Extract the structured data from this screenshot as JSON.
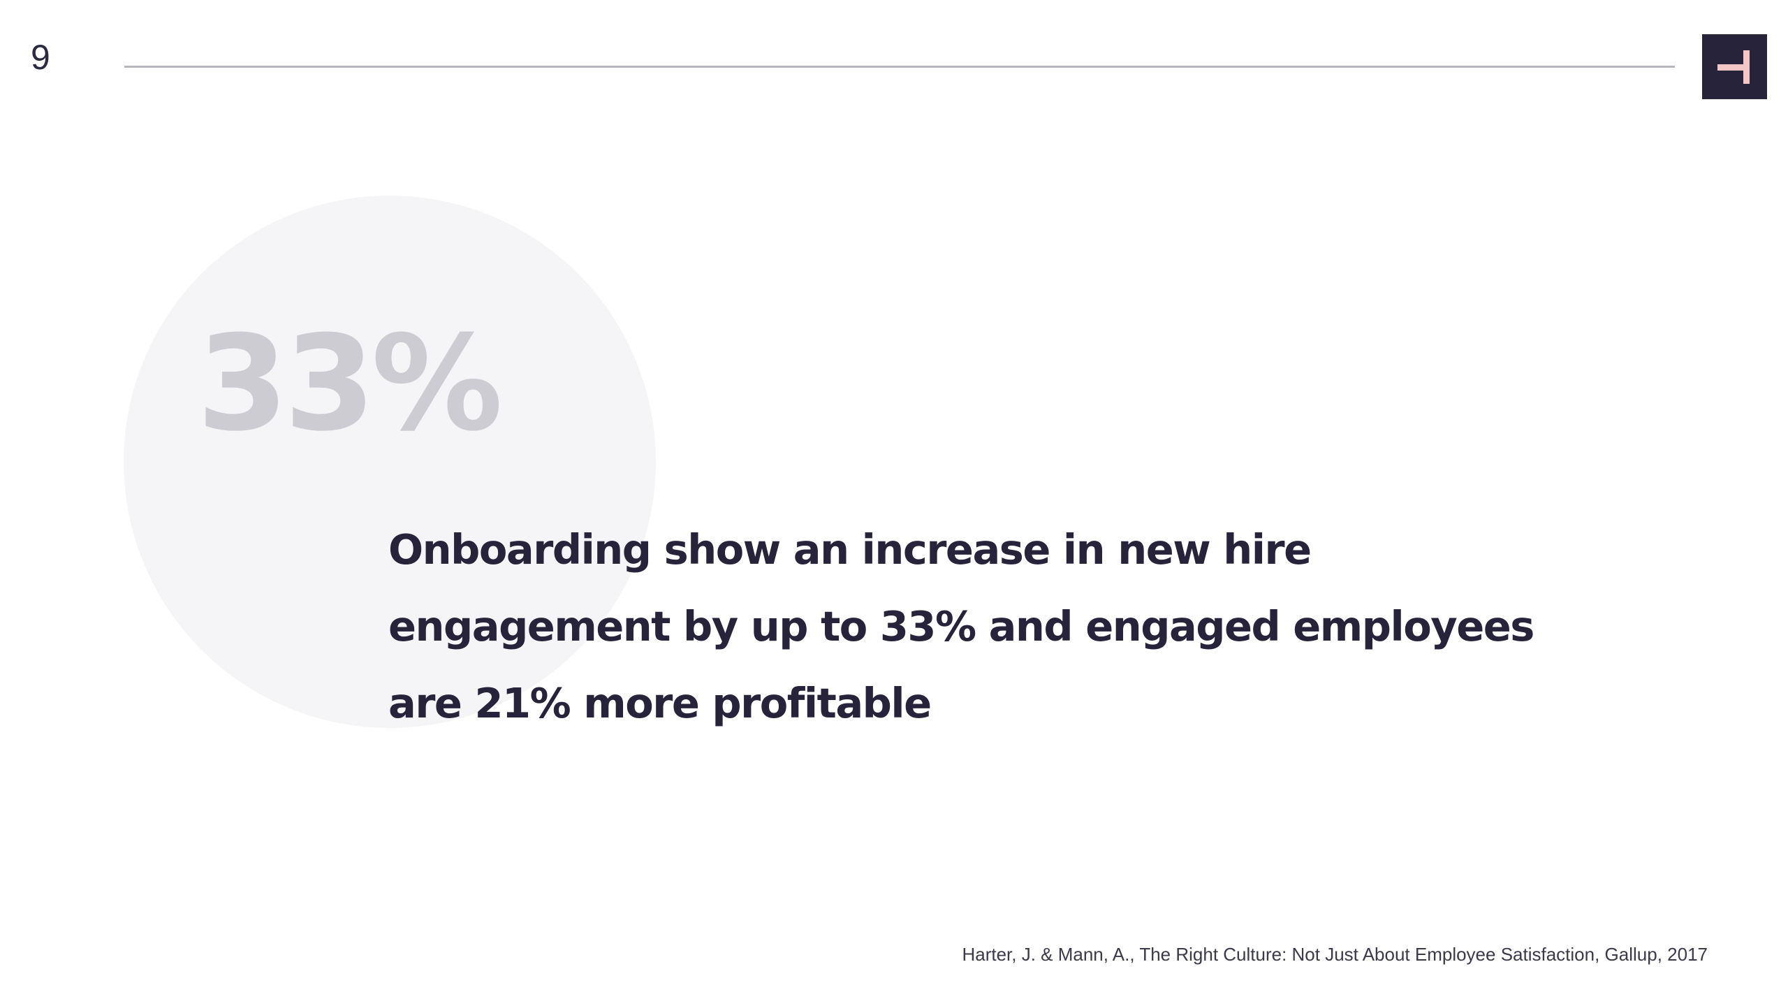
{
  "slide": {
    "page_number": "9",
    "stat": "33%",
    "statement_lines": [
      "Onboarding show an increase in new hire",
      "engagement by up to 33% and engaged employees",
      "are 21% more profitable"
    ],
    "citation": "Harter, J. & Mann, A., The Right Culture: Not Just About Employee Satisfaction, Gallup, 2017"
  },
  "colors": {
    "background": "#ffffff",
    "primary_text": "#26233a",
    "stat_text": "#cdccd2",
    "circle": "#f5f5f8",
    "logo_background": "#26233a",
    "logo_mark": "#f4c6c6",
    "rule": "#b8b8be"
  },
  "icons": {
    "logo": "brand-logo-icon"
  }
}
